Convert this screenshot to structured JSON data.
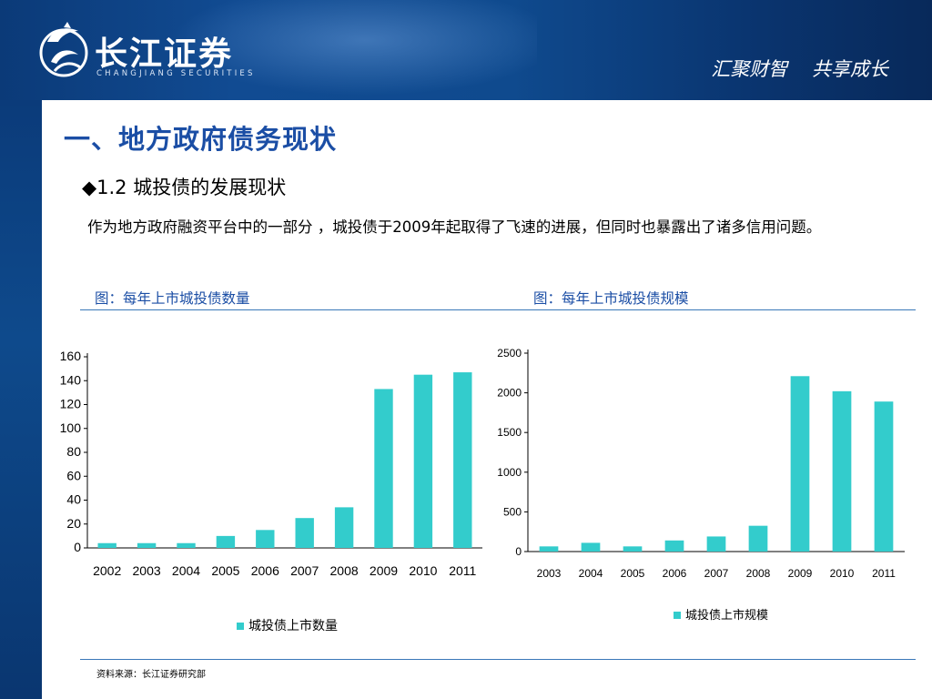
{
  "header": {
    "brand_name": "长江证券",
    "brand_sub": "CHANGJIANG SECURITIES",
    "slogan": "汇聚财智    共享成长"
  },
  "main_title": "一、地方政府债务现状",
  "section_title": "◆1.2 城投债的发展现状",
  "body_text": "作为地方政府融资平台中的一部分 ，城投债于2009年起取得了飞速的进展，但同时也暴露出了诸多信用问题。",
  "captions": {
    "left": "图：每年上市城投债数量",
    "right": "图：每年上市城投债规模"
  },
  "source_note": "资料来源：长江证券研究部",
  "colors": {
    "header_blue": "#0f4a8e",
    "title_blue": "#1b4ea5",
    "bar_teal": "#33cccc"
  },
  "chart_data": [
    {
      "type": "bar",
      "categories": [
        "2002",
        "2003",
        "2004",
        "2005",
        "2006",
        "2007",
        "2008",
        "2009",
        "2010",
        "2011"
      ],
      "series": [
        {
          "name": "城投债上市数量",
          "values": [
            4,
            4,
            4,
            10,
            15,
            25,
            34,
            133,
            145,
            147
          ]
        }
      ],
      "yticks": [
        "0",
        "20",
        "40",
        "60",
        "80",
        "100",
        "120",
        "140",
        "160"
      ],
      "ylim": [
        0,
        160
      ],
      "grid": false,
      "legend": "bottom"
    },
    {
      "type": "bar",
      "categories": [
        "2003",
        "2004",
        "2005",
        "2006",
        "2007",
        "2008",
        "2009",
        "2010",
        "2011"
      ],
      "series": [
        {
          "name": "城投债上市规模",
          "values": [
            65,
            110,
            65,
            140,
            190,
            325,
            2210,
            2020,
            1890
          ]
        }
      ],
      "yticks": [
        "0",
        "500",
        "1000",
        "1500",
        "2000",
        "2500"
      ],
      "ylim": [
        0,
        2500
      ],
      "grid": false,
      "legend": "bottom"
    }
  ]
}
